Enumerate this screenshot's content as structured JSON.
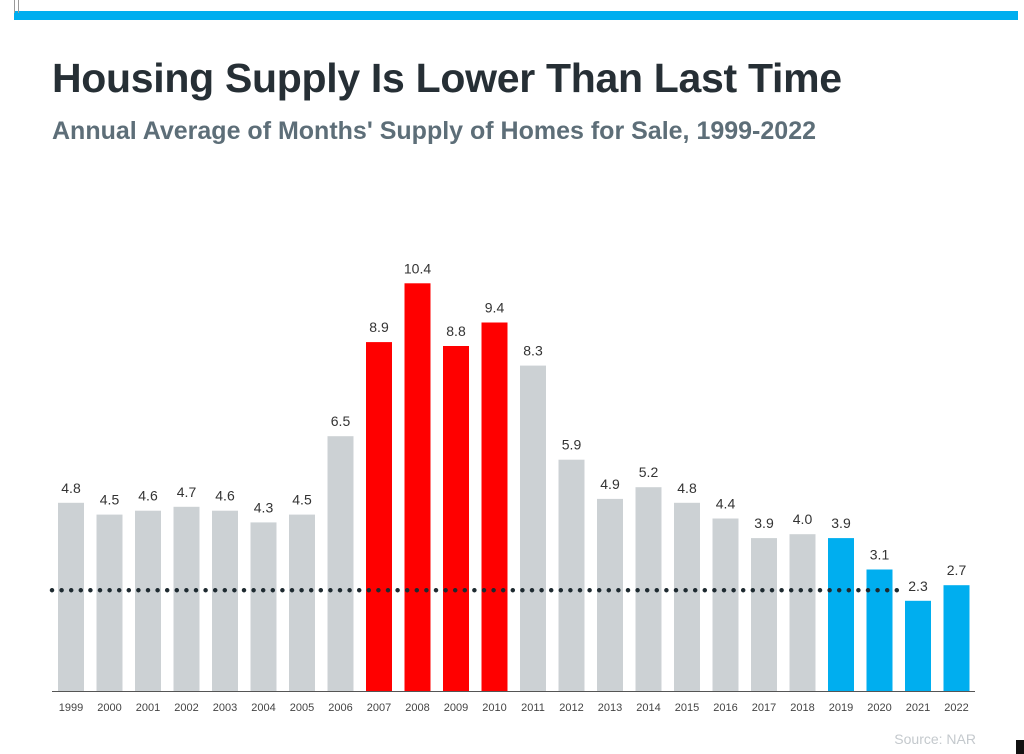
{
  "title": "Housing Supply Is Lower Than Last Time",
  "subtitle": "Annual Average of Months' Supply of Homes for Sale, 1999-2022",
  "source": "Source: NAR",
  "colors": {
    "accent": "#00aeef",
    "title": "#262f35",
    "subtitle": "#5d6e78",
    "bar_default": "#ccd1d4",
    "bar_highlight_red": "#ff0000",
    "bar_highlight_blue": "#00aeef",
    "reference_line": "#1e2a30",
    "axis": "#555555",
    "source": "#c4c9cd"
  },
  "chart_data": {
    "type": "bar",
    "title": "Housing Supply Is Lower Than Last Time",
    "subtitle": "Annual Average of Months' Supply of Homes for Sale, 1999-2022",
    "xlabel": "",
    "ylabel": "",
    "ylim": [
      0,
      11
    ],
    "grid": false,
    "legend": "none",
    "categories": [
      "1999",
      "2000",
      "2001",
      "2002",
      "2003",
      "2004",
      "2005",
      "2006",
      "2007",
      "2008",
      "2009",
      "2010",
      "2011",
      "2012",
      "2013",
      "2014",
      "2015",
      "2016",
      "2017",
      "2018",
      "2019",
      "2020",
      "2021",
      "2022"
    ],
    "values": [
      4.8,
      4.5,
      4.6,
      4.7,
      4.6,
      4.3,
      4.5,
      6.5,
      8.9,
      10.4,
      8.8,
      9.4,
      8.3,
      5.9,
      4.9,
      5.2,
      4.8,
      4.4,
      3.9,
      4.0,
      3.9,
      3.1,
      2.3,
      2.7
    ],
    "data_labels": [
      "4.8",
      "4.5",
      "4.6",
      "4.7",
      "4.6",
      "4.3",
      "4.5",
      "6.5",
      "8.9",
      "10.4",
      "8.8",
      "9.4",
      "8.3",
      "5.9",
      "4.9",
      "5.2",
      "4.8",
      "4.4",
      "3.9",
      "4.0",
      "3.9",
      "3.1",
      "2.3",
      "2.7"
    ],
    "bar_colors": [
      "gray",
      "gray",
      "gray",
      "gray",
      "gray",
      "gray",
      "gray",
      "gray",
      "red",
      "red",
      "red",
      "red",
      "gray",
      "gray",
      "gray",
      "gray",
      "gray",
      "gray",
      "gray",
      "gray",
      "blue",
      "blue",
      "blue",
      "blue"
    ],
    "reference_line": {
      "value": 2.7,
      "style": "dotted"
    }
  }
}
